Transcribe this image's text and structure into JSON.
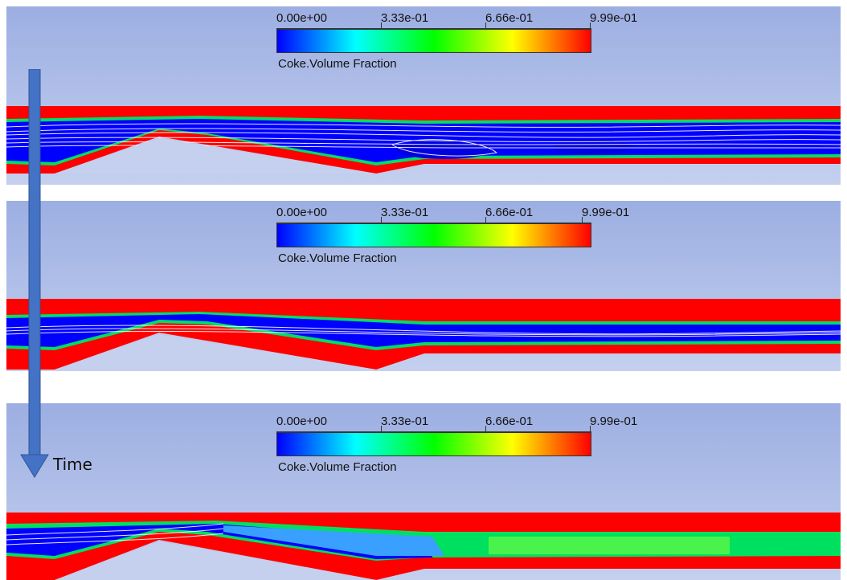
{
  "figure": {
    "time_label": "Time",
    "panels": [
      {
        "legend": {
          "title": "Coke.Volume Fraction",
          "ticks": [
            "0.00e+00",
            "3.33e-01",
            "6.66e-01",
            "9.99e-01"
          ]
        }
      },
      {
        "legend": {
          "title": "Coke.Volume Fraction",
          "ticks": [
            "0.00e+00",
            "3.33e-01",
            "6.66e-01",
            "9.99e-01"
          ]
        }
      },
      {
        "legend": {
          "title": "Coke.Volume Fraction",
          "ticks": [
            "0.00e+00",
            "3.33e-01",
            "6.66e-01",
            "9.99e-01"
          ]
        }
      }
    ]
  },
  "colors": {
    "background_top": "#9caee2",
    "background_bottom": "#c4d0ee",
    "coke_full": "#ff0000",
    "coke_empty": "#0000ff",
    "streamline": "#ffffff",
    "arrow": "#4472c4"
  }
}
